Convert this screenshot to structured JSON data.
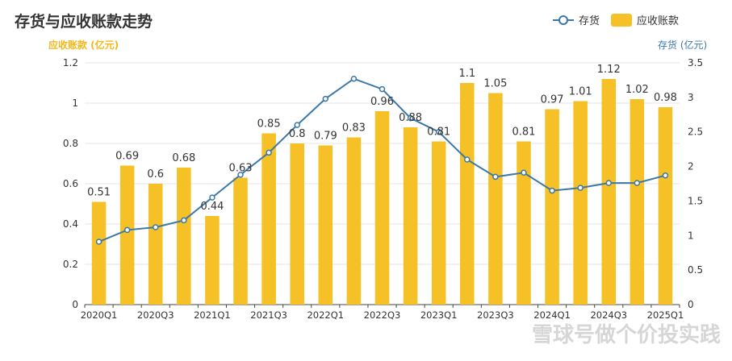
{
  "chart_data": {
    "type": "bar",
    "title": "存货与应收账款走势",
    "categories": [
      "2020Q1",
      "2020Q2",
      "2020Q3",
      "2020Q4",
      "2021Q1",
      "2021Q2",
      "2021Q3",
      "2021Q4",
      "2022Q1",
      "2022Q2",
      "2022Q3",
      "2022Q4",
      "2023Q1",
      "2023Q2",
      "2023Q3",
      "2023Q4",
      "2024Q1",
      "2024Q2",
      "2024Q3",
      "2024Q4",
      "2025Q1"
    ],
    "x_tick_labels": [
      "2020Q1",
      "2020Q3",
      "2021Q1",
      "2021Q3",
      "2022Q1",
      "2022Q3",
      "2023Q1",
      "2023Q3",
      "2024Q1",
      "2024Q3",
      "2025Q1"
    ],
    "series": [
      {
        "name": "应收账款",
        "type": "bar",
        "axis": "left",
        "color": "#F6C126",
        "values": [
          0.51,
          0.69,
          0.6,
          0.68,
          0.44,
          0.63,
          0.85,
          0.8,
          0.79,
          0.83,
          0.96,
          0.88,
          0.81,
          1.1,
          1.05,
          0.81,
          0.97,
          1.01,
          1.12,
          1.02,
          0.98
        ]
      },
      {
        "name": "存货",
        "type": "line",
        "axis": "right",
        "color": "#3B78A8",
        "values": [
          0.91,
          1.08,
          1.12,
          1.22,
          1.55,
          1.88,
          2.2,
          2.6,
          2.98,
          3.27,
          3.12,
          2.7,
          2.5,
          2.1,
          1.85,
          1.91,
          1.65,
          1.69,
          1.76,
          1.76,
          1.87
        ]
      }
    ],
    "ylabel_left": "应收账款 (亿元)",
    "ylabel_right": "存货 (亿元)",
    "ylim_left": [
      0,
      1.2
    ],
    "ylim_right": [
      0,
      3.5
    ],
    "yticks_left": [
      "0",
      "0.2",
      "0.4",
      "0.6",
      "0.8",
      "1",
      "1.2"
    ],
    "yticks_right": [
      "0",
      "0.5",
      "1",
      "1.5",
      "2",
      "2.5",
      "3",
      "3.5"
    ],
    "grid": true,
    "legend_position": "top-right"
  },
  "watermark": "雪球号做个价投实践"
}
